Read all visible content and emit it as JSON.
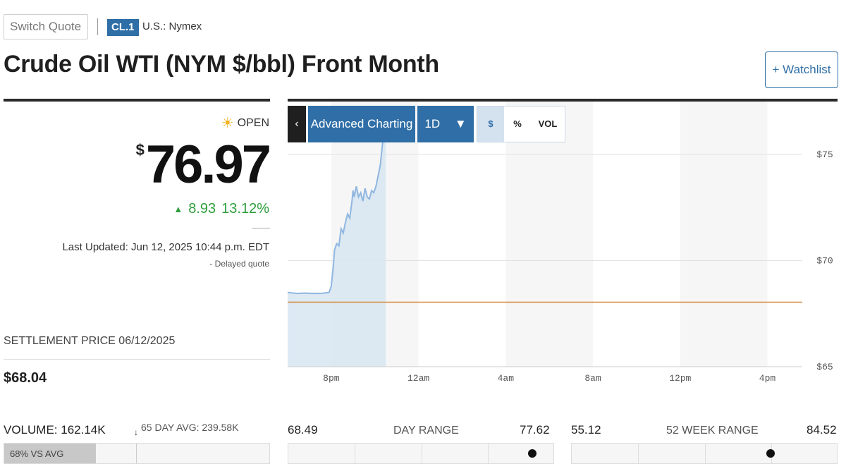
{
  "header": {
    "switch_quote": "Switch Quote",
    "ticker": "CL.1",
    "exchange": "U.S.: Nymex",
    "title": "Crude Oil WTI (NYM $/bbl) Front Month",
    "watchlist_label": "+ Watchlist"
  },
  "quote": {
    "status": "OPEN",
    "currency": "$",
    "price": "76.97",
    "change": "8.93",
    "change_percent": "13.12%",
    "last_updated": "Last Updated: Jun 12, 2025 10:44 p.m. EDT",
    "delayed": "Delayed quote",
    "settlement_label": "SETTLEMENT PRICE 06/12/2025",
    "settlement_value": "$68.04",
    "up_color": "#2e9e3c"
  },
  "volume": {
    "label": "VOLUME: 162.14K",
    "avg_label": "65 DAY AVG: 239.58K",
    "vs_avg_label": "68% VS AVG",
    "vs_avg_fraction": 0.68
  },
  "day_range": {
    "low": "68.49",
    "label": "DAY RANGE",
    "high": "77.62",
    "position": 0.92
  },
  "week52_range": {
    "low": "55.12",
    "label": "52 WEEK RANGE",
    "high": "84.52",
    "position": 0.75
  },
  "toolbar": {
    "collapse_icon": "chevron-left-icon",
    "advanced_label": "Advanced Charting",
    "range_label": "1D",
    "dropdown_icon": "caret-down-icon",
    "dollar_label": "$",
    "percent_label": "%",
    "vol_label": "VOL"
  },
  "chart_data": {
    "type": "area",
    "x_ticks": [
      "8pm",
      "12am",
      "4am",
      "8am",
      "12pm",
      "4pm"
    ],
    "y_ticks": [
      "$75",
      "$70",
      "$65"
    ],
    "y_tick_values": [
      75,
      70,
      65
    ],
    "ylim": [
      65,
      75.5
    ],
    "settlement_line": 68.04,
    "line_color": "#8fb7e0",
    "fill_color": "#d7e5f1",
    "settlement_color": "#d4883a",
    "series": [
      {
        "values": [
          [
            18.0,
            68.5
          ],
          [
            18.4,
            68.45
          ],
          [
            18.8,
            68.47
          ],
          [
            19.2,
            68.45
          ],
          [
            19.6,
            68.46
          ],
          [
            19.9,
            68.5
          ],
          [
            20.0,
            68.8
          ],
          [
            20.1,
            69.8
          ],
          [
            20.15,
            70.5
          ],
          [
            20.25,
            70.8
          ],
          [
            20.35,
            70.7
          ],
          [
            20.45,
            71.5
          ],
          [
            20.55,
            71.3
          ],
          [
            20.65,
            71.8
          ],
          [
            20.75,
            72.2
          ],
          [
            20.85,
            72.0
          ],
          [
            20.95,
            72.8
          ],
          [
            21.0,
            73.3
          ],
          [
            21.05,
            73.0
          ],
          [
            21.15,
            73.5
          ],
          [
            21.25,
            73.0
          ],
          [
            21.35,
            73.2
          ],
          [
            21.45,
            72.8
          ],
          [
            21.55,
            73.4
          ],
          [
            21.65,
            73.0
          ],
          [
            21.75,
            72.9
          ],
          [
            21.85,
            73.3
          ],
          [
            21.95,
            73.2
          ],
          [
            22.05,
            73.5
          ],
          [
            22.15,
            74.0
          ],
          [
            22.25,
            74.5
          ],
          [
            22.35,
            75.5
          ],
          [
            22.45,
            76.5
          ],
          [
            22.5,
            77.0
          ]
        ]
      }
    ]
  }
}
